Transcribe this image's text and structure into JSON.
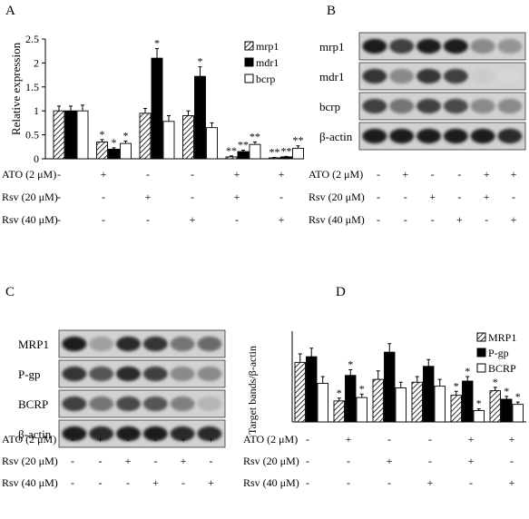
{
  "panels": {
    "A": {
      "letter": "A",
      "chart_data": {
        "type": "bar",
        "ylabel": "Relative expression",
        "ylim": [
          0,
          2.5
        ],
        "yticks": [
          "0",
          "0.5",
          "1",
          "1.5",
          "2",
          "2.5"
        ],
        "groups": 6,
        "series": [
          {
            "name": "mrp1",
            "pattern": "hatch",
            "values": [
              1.0,
              0.35,
              0.95,
              0.9,
              0.04,
              0.02
            ],
            "errors": [
              0.1,
              0.05,
              0.1,
              0.1,
              0.02,
              0.01
            ],
            "stars": [
              "",
              "*",
              "",
              "",
              "**",
              "**"
            ]
          },
          {
            "name": "mdr1",
            "pattern": "black",
            "values": [
              1.0,
              0.2,
              2.1,
              1.72,
              0.15,
              0.04
            ],
            "errors": [
              0.1,
              0.03,
              0.2,
              0.2,
              0.03,
              0.01
            ],
            "stars": [
              "",
              "*",
              "*",
              "*",
              "**",
              "**"
            ]
          },
          {
            "name": "bcrp",
            "pattern": "white",
            "values": [
              1.0,
              0.32,
              0.78,
              0.65,
              0.3,
              0.22
            ],
            "errors": [
              0.12,
              0.05,
              0.12,
              0.1,
              0.05,
              0.05
            ],
            "stars": [
              "",
              "*",
              "",
              "",
              "**",
              "**"
            ]
          }
        ],
        "legend": [
          "mrp1",
          "mdr1",
          "bcrp"
        ],
        "treatments": [
          {
            "label": "ATO (2 μM)",
            "marks": [
              "-",
              "+",
              "-",
              "-",
              "+",
              "+"
            ]
          },
          {
            "label": "Rsv (20 μM)",
            "marks": [
              "-",
              "-",
              "+",
              "-",
              "+",
              "-"
            ]
          },
          {
            "label": "Rsv (40 μM)",
            "marks": [
              "-",
              "-",
              "-",
              "+",
              "-",
              "+"
            ]
          }
        ]
      }
    },
    "B": {
      "letter": "B",
      "rows": [
        "mrp1",
        "mdr1",
        "bcrp",
        "β-actin"
      ],
      "intensities": [
        [
          0.95,
          0.8,
          0.95,
          0.95,
          0.45,
          0.4
        ],
        [
          0.85,
          0.45,
          0.85,
          0.8,
          0.15,
          0.1
        ],
        [
          0.8,
          0.55,
          0.8,
          0.75,
          0.45,
          0.45
        ],
        [
          0.95,
          0.95,
          0.95,
          0.95,
          0.95,
          0.9
        ]
      ],
      "treatments": [
        {
          "label": "ATO (2 μM)",
          "marks": [
            "-",
            "+",
            "-",
            "-",
            "+",
            "+"
          ]
        },
        {
          "label": "Rsv (20 μM)",
          "marks": [
            "-",
            "-",
            "+",
            "-",
            "+",
            "-"
          ]
        },
        {
          "label": "Rsv (40 μM)",
          "marks": [
            "-",
            "-",
            "-",
            "+",
            "-",
            "+"
          ]
        }
      ]
    },
    "C": {
      "letter": "C",
      "rows": [
        "MRP1",
        "P-gp",
        "BCRP",
        "β-actin"
      ],
      "intensities": [
        [
          0.95,
          0.35,
          0.9,
          0.85,
          0.55,
          0.6
        ],
        [
          0.85,
          0.7,
          0.9,
          0.8,
          0.45,
          0.45
        ],
        [
          0.8,
          0.55,
          0.75,
          0.7,
          0.5,
          0.25
        ],
        [
          0.95,
          0.9,
          0.95,
          0.95,
          0.9,
          0.9
        ]
      ],
      "treatments": [
        {
          "label": "ATO (2 μM)",
          "marks": [
            "-",
            "+",
            "-",
            "-",
            "+",
            "+"
          ]
        },
        {
          "label": "Rsv (20 μM)",
          "marks": [
            "-",
            "-",
            "+",
            "-",
            "+",
            "-"
          ]
        },
        {
          "label": "Rsv (40 μM)",
          "marks": [
            "-",
            "-",
            "-",
            "+",
            "-",
            "+"
          ]
        }
      ]
    },
    "D": {
      "letter": "D",
      "chart_data": {
        "type": "bar",
        "ylabel": "Target bands/β-actin",
        "ylim": [
          0,
          1.6
        ],
        "yticks": [],
        "groups": 6,
        "series": [
          {
            "name": "MRP1",
            "pattern": "hatch",
            "values": [
              1.05,
              0.37,
              0.75,
              0.7,
              0.47,
              0.55
            ],
            "errors": [
              0.15,
              0.05,
              0.15,
              0.1,
              0.07,
              0.06
            ],
            "stars": [
              "",
              "*",
              "",
              "",
              "*",
              "*"
            ]
          },
          {
            "name": "P-gp",
            "pattern": "black",
            "values": [
              1.15,
              0.82,
              1.23,
              0.98,
              0.72,
              0.4
            ],
            "errors": [
              0.15,
              0.1,
              0.15,
              0.12,
              0.08,
              0.05
            ],
            "stars": [
              "",
              "*",
              "",
              "",
              "*",
              "*"
            ]
          },
          {
            "name": "BCRP",
            "pattern": "white",
            "values": [
              0.68,
              0.43,
              0.6,
              0.63,
              0.2,
              0.31
            ],
            "errors": [
              0.12,
              0.06,
              0.1,
              0.12,
              0.03,
              0.04
            ],
            "stars": [
              "",
              "*",
              "",
              "",
              "*",
              "*"
            ]
          }
        ],
        "legend": [
          "MRP1",
          "P-gp",
          "BCRP"
        ],
        "treatments": [
          {
            "label": "ATO (2 μM)",
            "marks": [
              "-",
              "+",
              "-",
              "-",
              "+",
              "+"
            ]
          },
          {
            "label": "Rsv (20 μM)",
            "marks": [
              "-",
              "-",
              "+",
              "-",
              "+",
              "-"
            ]
          },
          {
            "label": "Rsv (40 μM)",
            "marks": [
              "-",
              "-",
              "-",
              "+",
              "-",
              "+"
            ]
          }
        ]
      }
    }
  }
}
